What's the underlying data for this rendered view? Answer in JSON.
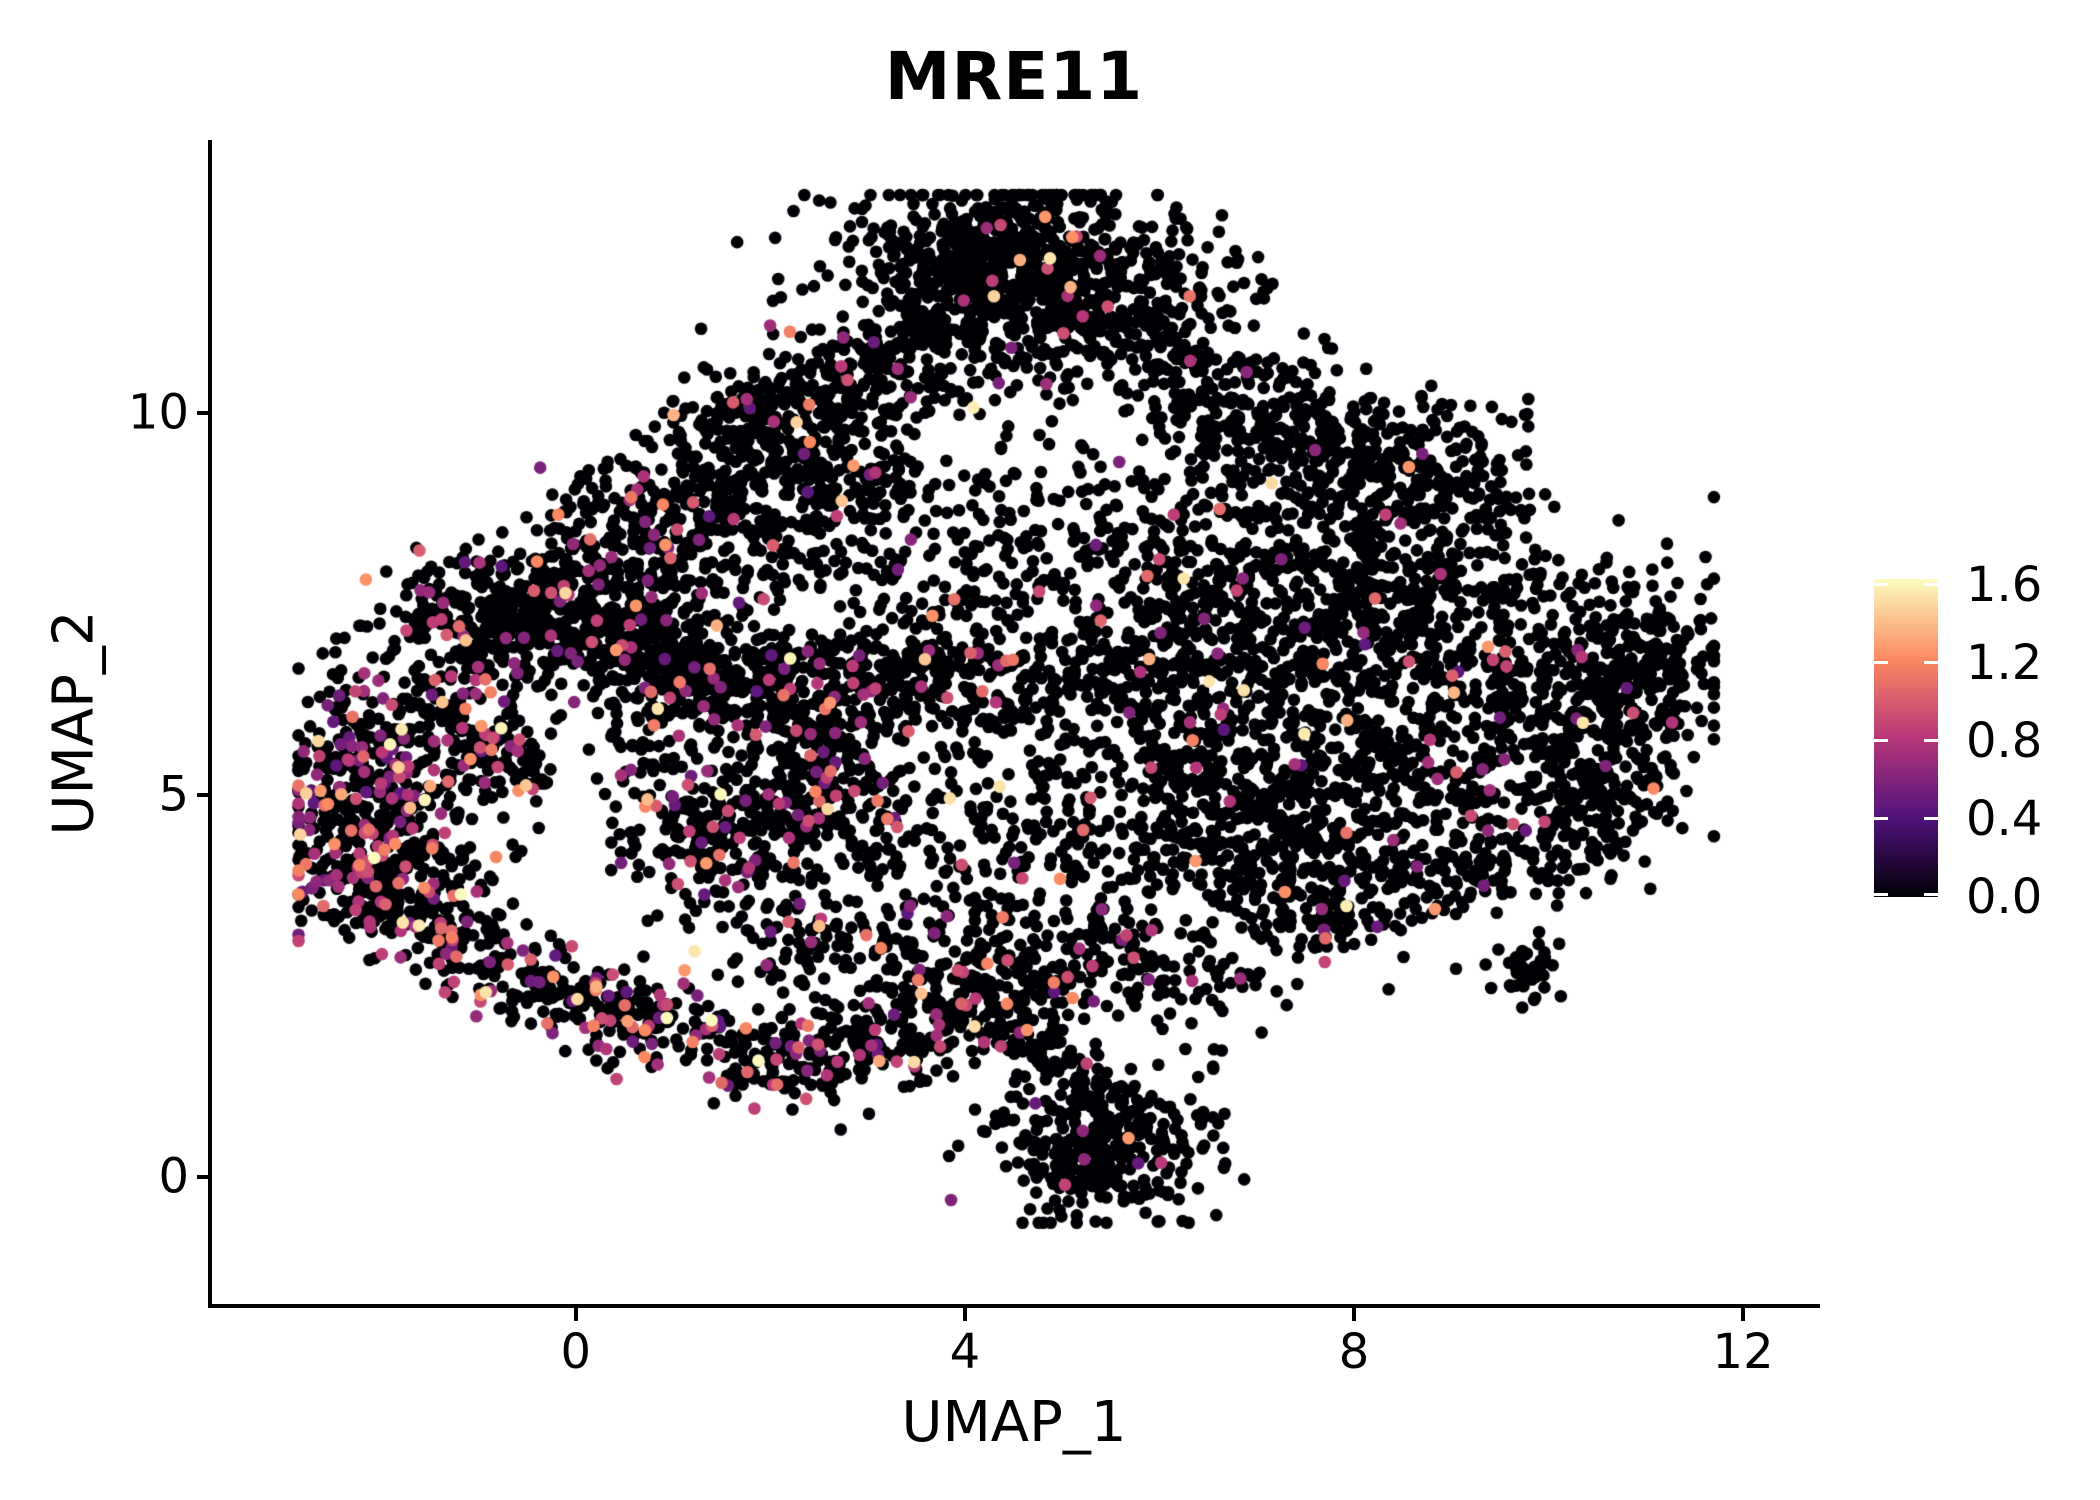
{
  "chart_data": {
    "type": "scatter",
    "title": "MRE11",
    "xlabel": "UMAP_1",
    "ylabel": "UMAP_2",
    "x_tick_values": [
      0,
      4,
      8,
      12
    ],
    "x_tick_labels": [
      "0",
      "4",
      "8",
      "12"
    ],
    "y_tick_values": [
      0,
      5,
      10
    ],
    "y_tick_labels": [
      "0",
      "5",
      "10"
    ],
    "x_range": [
      -3.76,
      12.77
    ],
    "y_range": [
      -1.69,
      13.57
    ],
    "grid": false,
    "background": "#ffffff",
    "point_radius_px": 6.3,
    "colormap": {
      "name": "magma",
      "stops": [
        "#000004",
        "#51127C",
        "#B73779",
        "#FC8961",
        "#FCFDBF"
      ]
    },
    "colorbar": {
      "vmin": 0.0,
      "vmax": 1.63,
      "tick_values": [
        0.0,
        0.4,
        0.8,
        1.2,
        1.6
      ],
      "tick_labels": [
        "0.0",
        "0.4",
        "0.8",
        "1.2",
        "1.6"
      ],
      "position": "right"
    },
    "points_model": {
      "seed": 7,
      "colored_value_buckets": [
        {
          "p": 0.7,
          "lo": 0.45,
          "hi": 0.95
        },
        {
          "p": 0.22,
          "lo": 0.98,
          "hi": 1.3
        },
        {
          "p": 0.08,
          "lo": 1.32,
          "hi": 1.63
        }
      ],
      "clamp_x": [
        -2.85,
        11.7
      ],
      "clamp_y": [
        -0.6,
        12.85
      ],
      "clusters": [
        {
          "type": "gauss",
          "x": 4.45,
          "y": 12.0,
          "sx": 0.85,
          "sy": 0.55,
          "n": 650,
          "colored_frac": 0.015
        },
        {
          "type": "gauss",
          "x": 5.4,
          "y": 11.3,
          "sx": 0.8,
          "sy": 0.55,
          "n": 300,
          "colored_frac": 0.02
        },
        {
          "type": "line",
          "x1": 1.3,
          "y1": 9.55,
          "x2": 3.9,
          "y2": 11.0,
          "s": 0.38,
          "n": 450,
          "colored_frac": 0.04
        },
        {
          "type": "line",
          "x1": 0.1,
          "y1": 8.35,
          "x2": 3.4,
          "y2": 9.4,
          "s": 0.45,
          "n": 320,
          "colored_frac": 0.05
        },
        {
          "type": "gauss",
          "x": -0.55,
          "y": 7.35,
          "sx": 0.75,
          "sy": 0.45,
          "n": 430,
          "colored_frac": 0.09
        },
        {
          "type": "gauss",
          "x": 0.7,
          "y": 7.05,
          "sx": 0.6,
          "sy": 0.38,
          "n": 260,
          "colored_frac": 0.09
        },
        {
          "type": "gauss",
          "x": -2.1,
          "y": 5.05,
          "sx": 0.5,
          "sy": 0.8,
          "n": 360,
          "colored_frac": 0.26
        },
        {
          "type": "line",
          "x1": -2.45,
          "y1": 4.1,
          "x2": -0.6,
          "y2": 2.55,
          "s": 0.32,
          "n": 270,
          "colored_frac": 0.25
        },
        {
          "type": "line",
          "x1": -0.6,
          "y1": 2.55,
          "x2": 2.2,
          "y2": 1.45,
          "s": 0.3,
          "n": 280,
          "colored_frac": 0.22
        },
        {
          "type": "line",
          "x1": 2.2,
          "y1": 1.45,
          "x2": 4.4,
          "y2": 2.25,
          "s": 0.32,
          "n": 270,
          "colored_frac": 0.12
        },
        {
          "type": "gauss",
          "x": 5.45,
          "y": 0.35,
          "sx": 0.6,
          "sy": 0.45,
          "n": 280,
          "colored_frac": 0.02
        },
        {
          "type": "line",
          "x1": 4.75,
          "y1": 1.9,
          "x2": 5.45,
          "y2": 0.75,
          "s": 0.25,
          "n": 110,
          "colored_frac": 0.03
        },
        {
          "type": "line",
          "x1": 0.9,
          "y1": 6.35,
          "x2": 4.3,
          "y2": 6.7,
          "s": 0.4,
          "n": 430,
          "colored_frac": 0.09
        },
        {
          "type": "gauss",
          "x": 2.45,
          "y": 5.25,
          "sx": 0.28,
          "sy": 0.55,
          "n": 170,
          "colored_frac": 0.12
        },
        {
          "type": "rect",
          "x0": 0.3,
          "x1": 5.3,
          "y0": 3.9,
          "y1": 6.9,
          "n": 480,
          "colored_frac": 0.08
        },
        {
          "type": "line",
          "x1": 1.9,
          "y1": 3.15,
          "x2": 6.6,
          "y2": 2.7,
          "s": 0.45,
          "n": 450,
          "colored_frac": 0.07
        },
        {
          "type": "gauss",
          "x": 7.3,
          "y": 7.7,
          "sx": 1.1,
          "sy": 0.75,
          "n": 480,
          "colored_frac": 0.025
        },
        {
          "type": "gauss",
          "x": 9.2,
          "y": 6.9,
          "sx": 0.95,
          "sy": 0.85,
          "n": 420,
          "colored_frac": 0.03
        },
        {
          "type": "gauss",
          "x": 8.2,
          "y": 5.3,
          "sx": 1.15,
          "sy": 0.85,
          "n": 480,
          "colored_frac": 0.03
        },
        {
          "type": "gauss",
          "x": 6.6,
          "y": 4.6,
          "sx": 0.9,
          "sy": 0.65,
          "n": 340,
          "colored_frac": 0.04
        },
        {
          "type": "gauss",
          "x": 10.3,
          "y": 5.5,
          "sx": 0.6,
          "sy": 0.7,
          "n": 130,
          "colored_frac": 0.03
        },
        {
          "type": "gauss",
          "x": 11.15,
          "y": 6.6,
          "sx": 0.35,
          "sy": 0.5,
          "n": 130,
          "colored_frac": 0.02
        },
        {
          "type": "gauss",
          "x": 5.95,
          "y": 6.3,
          "sx": 0.7,
          "sy": 0.6,
          "n": 240,
          "colored_frac": 0.05
        },
        {
          "type": "line",
          "x1": 7.0,
          "y1": 3.35,
          "x2": 10.0,
          "y2": 4.3,
          "s": 0.35,
          "n": 230,
          "colored_frac": 0.04
        },
        {
          "type": "line",
          "x1": 6.1,
          "y1": 10.5,
          "x2": 9.0,
          "y2": 8.8,
          "s": 0.5,
          "n": 380,
          "colored_frac": 0.02
        },
        {
          "type": "rect",
          "x0": 6.2,
          "x1": 9.8,
          "y0": 8.6,
          "y1": 10.2,
          "n": 180,
          "colored_frac": 0.02
        },
        {
          "type": "rect",
          "x0": -0.4,
          "x1": 3.4,
          "y0": 7.7,
          "y1": 9.3,
          "n": 240,
          "colored_frac": 0.05
        },
        {
          "type": "rect",
          "x0": -2.6,
          "x1": -0.6,
          "y0": 3.4,
          "y1": 6.6,
          "n": 140,
          "colored_frac": 0.16
        },
        {
          "type": "gauss",
          "x": 4.9,
          "y": 8.1,
          "sx": 1.1,
          "sy": 0.8,
          "n": 260,
          "colored_frac": 0.04
        },
        {
          "type": "gauss",
          "x": 9.75,
          "y": 2.7,
          "sx": 0.18,
          "sy": 0.18,
          "n": 40,
          "colored_frac": 0.0
        },
        {
          "type": "line",
          "x1": 10.9,
          "y1": 7.3,
          "x2": 10.35,
          "y2": 4.1,
          "s": 0.3,
          "n": 190,
          "colored_frac": 0.03
        },
        {
          "type": "gauss",
          "x": 1.45,
          "y": 4.55,
          "sx": 0.45,
          "sy": 0.5,
          "n": 160,
          "colored_frac": 0.1
        },
        {
          "type": "line",
          "x1": -1.35,
          "y1": 6.1,
          "x2": -0.35,
          "y2": 5.2,
          "s": 0.3,
          "n": 130,
          "colored_frac": 0.15
        }
      ]
    }
  }
}
